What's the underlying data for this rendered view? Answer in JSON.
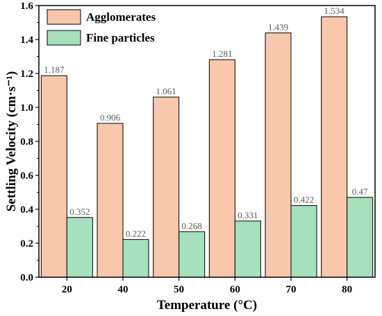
{
  "chart_data": {
    "type": "bar",
    "title": "",
    "xlabel": "Temperature (°C)",
    "ylabel": "Settling Velocity (cm·s⁻¹)",
    "categories": [
      "20",
      "40",
      "50",
      "60",
      "70",
      "80"
    ],
    "ylim": [
      0,
      1.6
    ],
    "yticks": [
      "0.0",
      "0.2",
      "0.4",
      "0.6",
      "0.8",
      "1.0",
      "1.2",
      "1.4",
      "1.6"
    ],
    "grid": false,
    "legend_position": "top-left",
    "series": [
      {
        "name": "Agglomerates",
        "color": "#f9c7ab",
        "values": [
          1.187,
          0.906,
          1.061,
          1.281,
          1.439,
          1.534
        ],
        "labels": [
          "1.187",
          "0.906",
          "1.061",
          "1.281",
          "1.439",
          "1.534"
        ]
      },
      {
        "name": "Fine particles",
        "color": "#a6e0bd",
        "values": [
          0.352,
          0.222,
          0.268,
          0.331,
          0.422,
          0.47
        ],
        "labels": [
          "0.352",
          "0.222",
          "0.268",
          "0.331",
          "0.422",
          "0.47"
        ]
      }
    ]
  }
}
